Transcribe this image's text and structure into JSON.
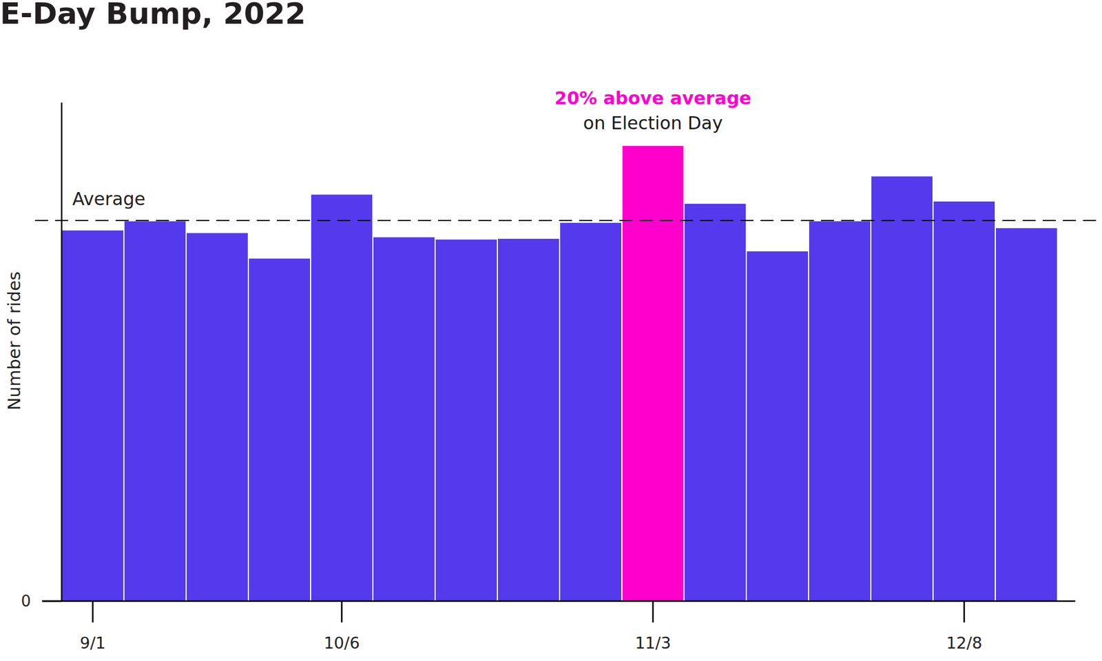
{
  "chart_data": {
    "type": "bar",
    "title": "E-Day Bump, 2022",
    "y_label": "Number of rides",
    "categories": [
      "9/1",
      null,
      null,
      null,
      "10/6",
      null,
      null,
      null,
      null,
      "11/3",
      null,
      null,
      null,
      null,
      "12/8",
      null
    ],
    "values": [
      97.4,
      99.8,
      96.7,
      90.0,
      106.8,
      95.6,
      95.0,
      95.2,
      99.4,
      119.6,
      104.4,
      91.9,
      99.8,
      111.6,
      105.0,
      98.0
    ],
    "colors": [
      "#5539ec",
      "#5539ec",
      "#5539ec",
      "#5539ec",
      "#5539ec",
      "#5539ec",
      "#5539ec",
      "#5539ec",
      "#5539ec",
      "#ff00cc",
      "#5539ec",
      "#5539ec",
      "#5539ec",
      "#5539ec",
      "#5539ec",
      "#5539ec"
    ],
    "average": 100,
    "average_label": "Average",
    "annotations": [
      {
        "text": "20% above average",
        "color": "#ff00cc"
      },
      {
        "text": "on Election Day",
        "color": "#1a1a1a"
      }
    ],
    "ylim": [
      0,
      131
    ],
    "yticks": [
      0
    ],
    "grid": false
  }
}
